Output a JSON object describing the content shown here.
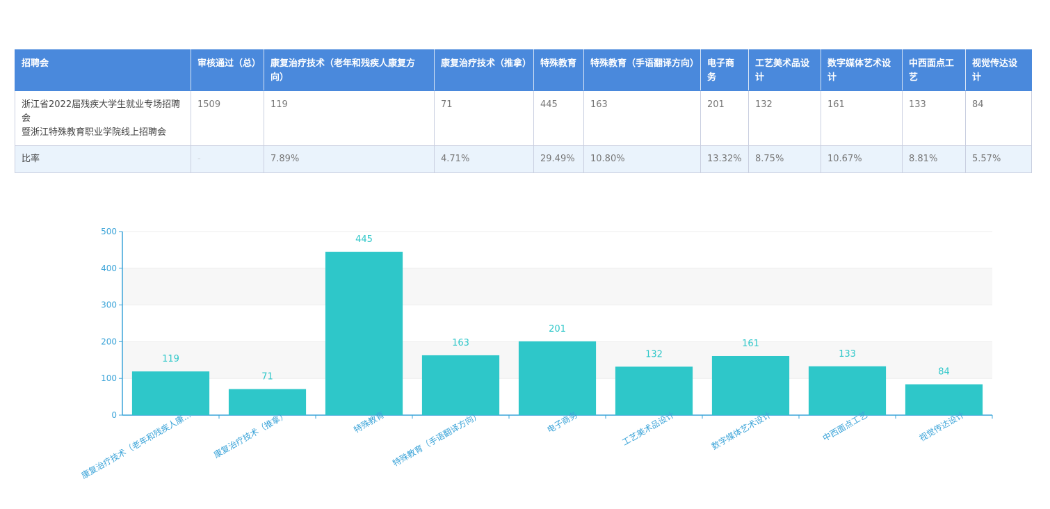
{
  "table": {
    "headers": [
      "招聘会",
      "审核通过（总）",
      "康复治疗技术（老年和残疾人康复方向）",
      "康复治疗技术（推拿）",
      "特殊教育",
      "特殊教育（手语翻译方向）",
      "电子商务",
      "工艺美术品设计",
      "数字媒体艺术设计",
      "中西面点工艺",
      "视觉传达设计"
    ],
    "row": {
      "name_line1": "浙江省2022届残疾大学生就业专场招聘会",
      "name_line2": "暨浙江特殊教育职业学院线上招聘会",
      "values": [
        "1509",
        "119",
        "71",
        "445",
        "163",
        "201",
        "132",
        "161",
        "133",
        "84"
      ]
    },
    "rate": {
      "label": "比率",
      "values": [
        "-",
        "7.89%",
        "4.71%",
        "29.49%",
        "10.80%",
        "13.32%",
        "8.75%",
        "10.67%",
        "8.81%",
        "5.57%"
      ]
    }
  },
  "chart_data": {
    "type": "bar",
    "categories": [
      "康复治疗技术（老年和残疾人康复方向）",
      "康复治疗技术（推拿）",
      "特殊教育",
      "特殊教育（手语翻译方向）",
      "电子商务",
      "工艺美术品设计",
      "数字媒体艺术设计",
      "中西面点工艺",
      "视觉传达设计"
    ],
    "categories_display": [
      "康复治疗技术（老年和残疾人康...",
      "康复治疗技术（推拿）",
      "特殊教育",
      "特殊教育（手语翻译方向）",
      "电子商务",
      "工艺美术品设计",
      "数字媒体艺术设计",
      "中西面点工艺",
      "视觉传达设计"
    ],
    "values": [
      119,
      71,
      445,
      163,
      201,
      132,
      161,
      133,
      84
    ],
    "ylim": [
      0,
      500
    ],
    "yticks": [
      0,
      100,
      200,
      300,
      400,
      500
    ],
    "title": "",
    "xlabel": "",
    "ylabel": "",
    "grid": true,
    "bar_color": "#2ec7c9",
    "axis_color": "#3aa3d8",
    "label_color": "#2ec7c9"
  }
}
